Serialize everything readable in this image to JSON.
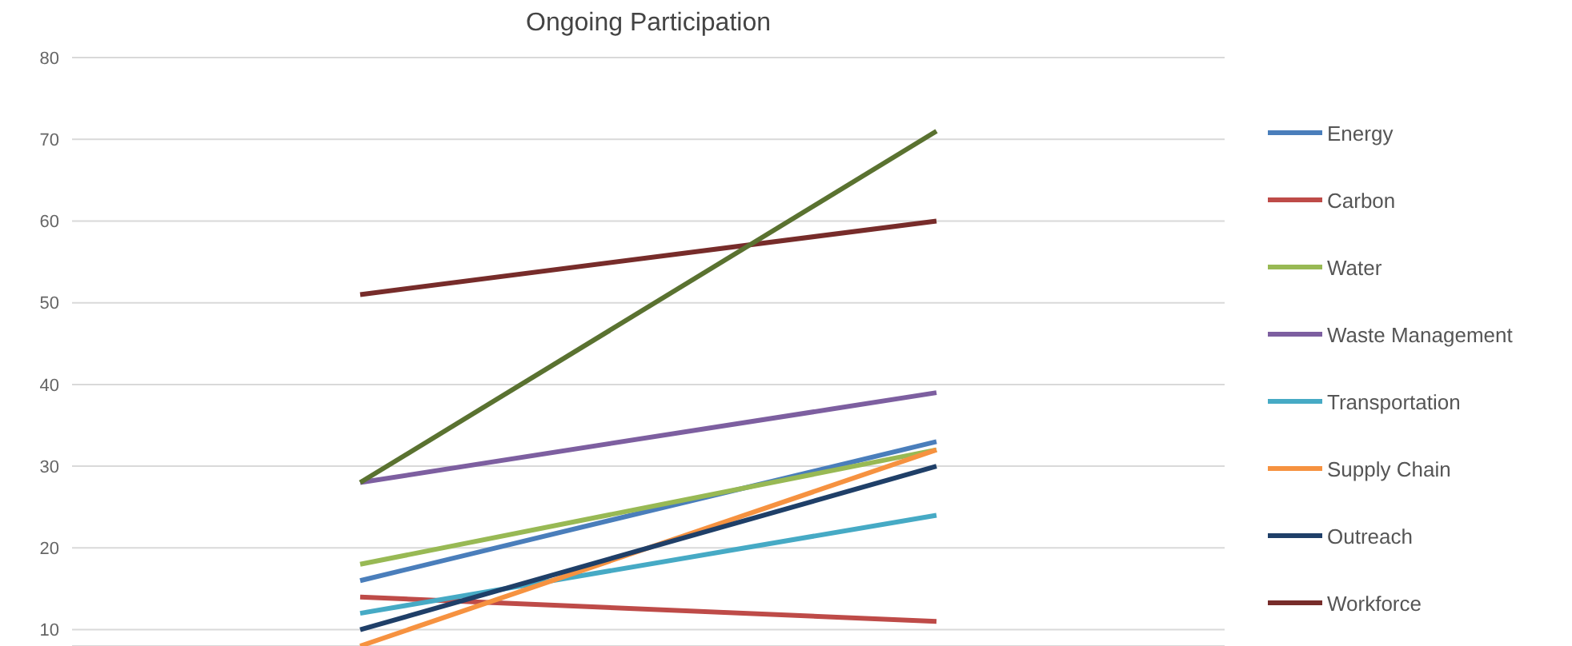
{
  "chart_data": {
    "type": "line",
    "title": "Ongoing Participation",
    "categories": [
      null,
      null
    ],
    "series": [
      {
        "name": "Energy",
        "color": "#4a7ebb",
        "values": [
          16,
          33
        ]
      },
      {
        "name": "Carbon",
        "color": "#be4b48",
        "values": [
          14,
          11
        ]
      },
      {
        "name": "Water",
        "color": "#98b954",
        "values": [
          18,
          32
        ]
      },
      {
        "name": "Waste Management",
        "color": "#7d5fa0",
        "values": [
          28,
          39
        ]
      },
      {
        "name": "Transportation",
        "color": "#46aac5",
        "values": [
          12,
          24
        ]
      },
      {
        "name": "Supply Chain",
        "color": "#f69240",
        "values": [
          8,
          32
        ]
      },
      {
        "name": "Outreach",
        "color": "#1f3f68",
        "values": [
          10,
          30
        ]
      },
      {
        "name": "Workforce",
        "color": "#772c2a",
        "values": [
          51,
          60
        ]
      },
      {
        "color": "#5a7230",
        "values": [
          28,
          71
        ]
      }
    ],
    "ylim": [
      8,
      80
    ],
    "yticks": [
      10,
      20,
      30,
      40,
      50,
      60,
      70,
      80
    ],
    "grid": "y",
    "legend": "right",
    "tick_labels": "y",
    "marker": "none",
    "line_style": "solid"
  }
}
